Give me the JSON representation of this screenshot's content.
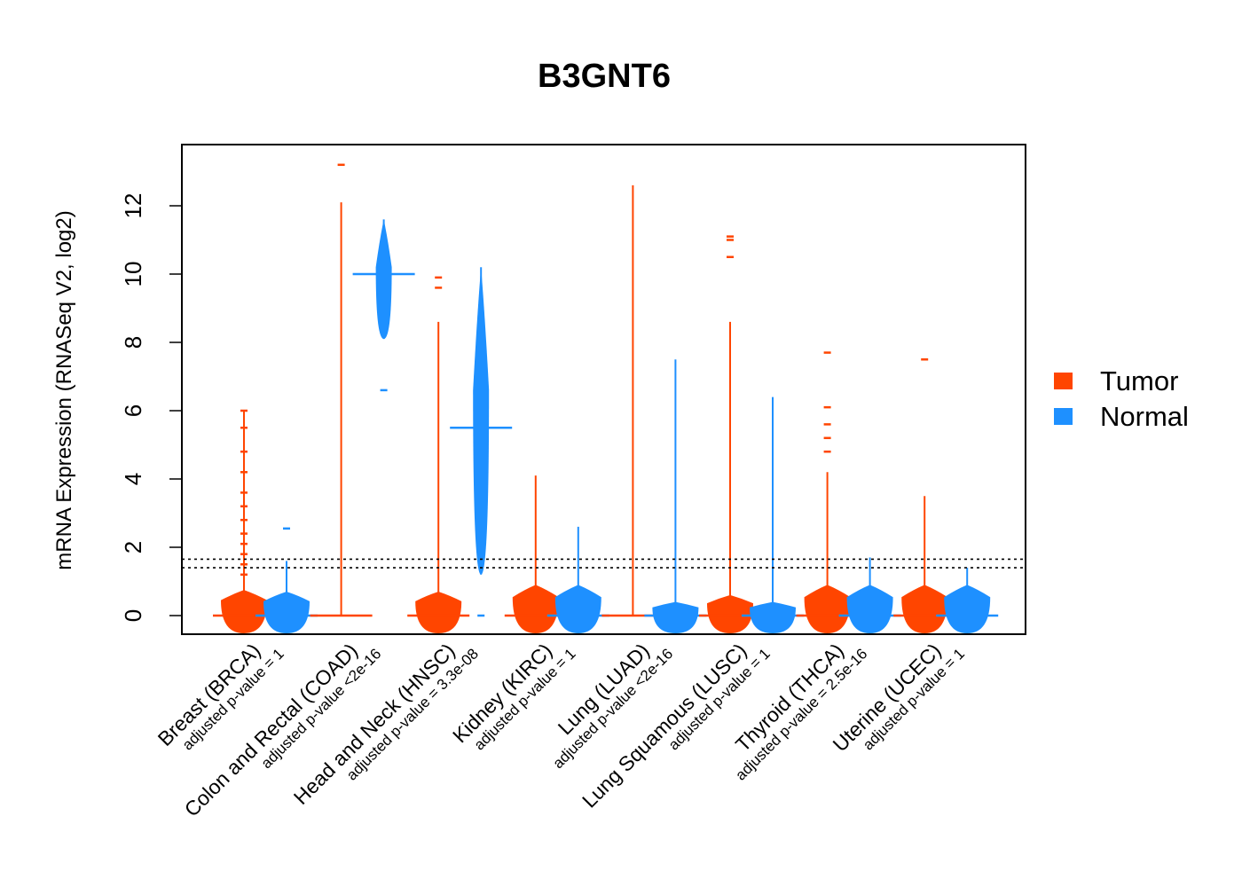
{
  "chart_data": {
    "type": "beanplot",
    "title": "B3GNT6",
    "xlabel": "",
    "ylabel": "mRNA Expression (RNASeq V2, log2)",
    "ylim": [
      -0.5,
      13.8
    ],
    "yticks": [
      0,
      2,
      4,
      6,
      8,
      10,
      12
    ],
    "reference_lines": [
      1.4,
      1.65
    ],
    "legend": {
      "position": "right",
      "entries": [
        {
          "label": "Tumor",
          "color": "#ff4500"
        },
        {
          "label": "Normal",
          "color": "#1e90ff"
        }
      ]
    },
    "colors": {
      "tumor": "#ff4500",
      "normal": "#1e90ff"
    },
    "groups": [
      {
        "label": "Breast (BRCA)",
        "pvalue": "adjusted p-value = 1",
        "tumor": {
          "median": 0.0,
          "body": [
            0.0,
            0.75
          ],
          "max": 6.0,
          "outliers": [
            1.2,
            1.5,
            1.8,
            2.1,
            2.4,
            2.8,
            3.2,
            3.6,
            4.2,
            4.8,
            5.5,
            6.0
          ]
        },
        "normal": {
          "median": 0.0,
          "body": [
            0.0,
            0.7
          ],
          "max": 1.6,
          "outliers": [
            2.55
          ]
        }
      },
      {
        "label": "Colon and Rectal (COAD)",
        "pvalue": "adjusted p-value <2e-16",
        "tumor": {
          "median": 0.0,
          "body": [
            0.0,
            0.0
          ],
          "max": 12.1,
          "outliers": [
            13.2
          ]
        },
        "normal": {
          "median": 10.0,
          "body": [
            8.1,
            11.6
          ],
          "max": 11.6,
          "outliers": [
            6.6
          ]
        }
      },
      {
        "label": "Head and Neck (HNSC)",
        "pvalue": "adjusted p-value = 3.3e-08",
        "tumor": {
          "median": 0.0,
          "body": [
            0.0,
            0.7
          ],
          "max": 8.6,
          "outliers": [
            9.6,
            9.9
          ]
        },
        "normal": {
          "median": 5.5,
          "body": [
            1.2,
            10.2
          ],
          "max": 10.2,
          "outliers": [
            0.0
          ]
        }
      },
      {
        "label": "Kidney (KIRC)",
        "pvalue": "adjusted p-value = 1",
        "tumor": {
          "median": 0.0,
          "body": [
            0.0,
            0.9
          ],
          "max": 4.1,
          "outliers": []
        },
        "normal": {
          "median": 0.0,
          "body": [
            0.0,
            0.9
          ],
          "max": 2.6,
          "outliers": []
        }
      },
      {
        "label": "Lung (LUAD)",
        "pvalue": "adjusted p-value <2e-16",
        "tumor": {
          "median": 0.0,
          "body": [
            0.0,
            0.0
          ],
          "max": 12.6,
          "outliers": []
        },
        "normal": {
          "median": 0.0,
          "body": [
            0.0,
            0.4
          ],
          "max": 7.5,
          "outliers": []
        }
      },
      {
        "label": "Lung Squamous (LUSC)",
        "pvalue": "adjusted p-value = 1",
        "tumor": {
          "median": 0.0,
          "body": [
            0.0,
            0.6
          ],
          "max": 8.6,
          "outliers": [
            10.5,
            11.0,
            11.1
          ]
        },
        "normal": {
          "median": 0.0,
          "body": [
            0.0,
            0.4
          ],
          "max": 6.4,
          "outliers": []
        }
      },
      {
        "label": "Thyroid (THCA)",
        "pvalue": "adjusted p-value = 2.5e-16",
        "tumor": {
          "median": 0.0,
          "body": [
            0.0,
            0.9
          ],
          "max": 4.2,
          "outliers": [
            4.8,
            5.2,
            5.6,
            6.1,
            7.7
          ]
        },
        "normal": {
          "median": 0.0,
          "body": [
            0.0,
            0.9
          ],
          "max": 1.7,
          "outliers": []
        }
      },
      {
        "label": "Uterine (UCEC)",
        "pvalue": "adjusted p-value = 1",
        "tumor": {
          "median": 0.0,
          "body": [
            0.0,
            0.9
          ],
          "max": 3.5,
          "outliers": [
            7.5
          ]
        },
        "normal": {
          "median": 0.0,
          "body": [
            0.0,
            0.9
          ],
          "max": 1.4,
          "outliers": []
        }
      }
    ]
  }
}
